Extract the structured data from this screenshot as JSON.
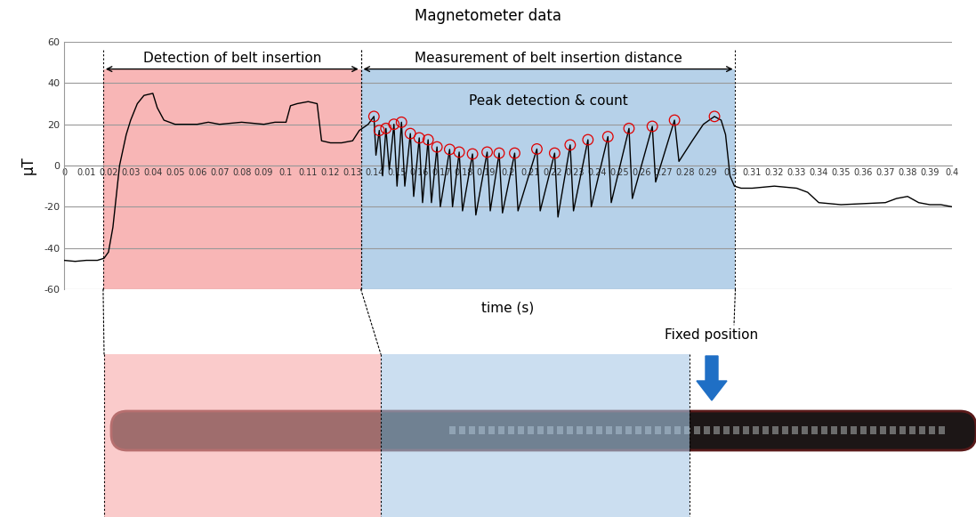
{
  "chart_data": {
    "type": "line",
    "title": "Magnetometer data",
    "x_label": "time (s)",
    "y_label": "μT",
    "color": "#000000",
    "grid": true,
    "xlim": [
      0,
      0.4
    ],
    "ylim": [
      -60,
      60
    ],
    "xticks": [
      0,
      0.01,
      0.02,
      0.03,
      0.04,
      0.05,
      0.06,
      0.07,
      0.08,
      0.09,
      0.1,
      0.11,
      0.12,
      0.13,
      0.14,
      0.15,
      0.16,
      0.17,
      0.18,
      0.19,
      0.2,
      0.21,
      0.22,
      0.23,
      0.24,
      0.25,
      0.26,
      0.27,
      0.28,
      0.29,
      0.3,
      0.31,
      0.32,
      0.33,
      0.34,
      0.35,
      0.36,
      0.37,
      0.38,
      0.39,
      0.4
    ],
    "yticks": [
      -60,
      -40,
      -20,
      0,
      20,
      40,
      60
    ],
    "x": [
      0,
      0.005,
      0.01,
      0.015,
      0.018,
      0.02,
      0.022,
      0.025,
      0.028,
      0.03,
      0.033,
      0.036,
      0.04,
      0.042,
      0.045,
      0.05,
      0.06,
      0.065,
      0.07,
      0.08,
      0.09,
      0.095,
      0.1,
      0.102,
      0.105,
      0.11,
      0.114,
      0.116,
      0.12,
      0.125,
      0.13,
      0.133,
      0.137,
      0.1396,
      0.1405,
      0.142,
      0.1435,
      0.145,
      0.1465,
      0.1486,
      0.15,
      0.152,
      0.1535,
      0.156,
      0.1575,
      0.16,
      0.1615,
      0.164,
      0.1655,
      0.168,
      0.1695,
      0.1737,
      0.175,
      0.178,
      0.1795,
      0.184,
      0.1855,
      0.1906,
      0.192,
      0.196,
      0.1975,
      0.203,
      0.2045,
      0.213,
      0.2145,
      0.221,
      0.2225,
      0.228,
      0.2295,
      0.236,
      0.2375,
      0.245,
      0.2465,
      0.2545,
      0.256,
      0.265,
      0.2665,
      0.275,
      0.277,
      0.283,
      0.288,
      0.293,
      0.296,
      0.298,
      0.3,
      0.302,
      0.305,
      0.31,
      0.32,
      0.33,
      0.335,
      0.34,
      0.35,
      0.36,
      0.37,
      0.375,
      0.38,
      0.385,
      0.39,
      0.395,
      0.4
    ],
    "values": [
      -46,
      -46.5,
      -46,
      -46,
      -45,
      -42,
      -30,
      0,
      15,
      22,
      30,
      34,
      35,
      28,
      22,
      20,
      20,
      21,
      20,
      21,
      20,
      21,
      21,
      29,
      30,
      31,
      30,
      12,
      11,
      11,
      12,
      17,
      20,
      23.8,
      5,
      17,
      -5,
      18,
      -2,
      20,
      -10,
      21,
      -10,
      15.5,
      -15,
      13.4,
      -18,
      12.5,
      -18,
      9,
      -20,
      7.8,
      -20,
      6.5,
      -22,
      5.6,
      -24,
      6.5,
      -22,
      6,
      -23,
      6,
      -22,
      8,
      -22,
      6,
      -25,
      10,
      -22,
      12.5,
      -20,
      14,
      -18,
      18,
      -16,
      19,
      -8,
      22,
      2,
      12,
      20,
      23.8,
      22,
      15,
      -5,
      -10,
      -11,
      -11,
      -10,
      -11,
      -13,
      -18,
      -19,
      -18.5,
      -18,
      -16,
      -15,
      -18,
      -19,
      -19,
      -20
    ],
    "peaks": {
      "label": "Peak detection & count",
      "color": "#e00000",
      "marker": "o",
      "x": [
        0.1396,
        0.142,
        0.145,
        0.1486,
        0.152,
        0.156,
        0.16,
        0.164,
        0.168,
        0.1737,
        0.178,
        0.184,
        0.1906,
        0.196,
        0.203,
        0.213,
        0.221,
        0.228,
        0.236,
        0.245,
        0.2545,
        0.265,
        0.275,
        0.293
      ],
      "values": [
        23.8,
        17,
        18,
        20,
        21,
        15.5,
        13.4,
        12.5,
        9,
        7.8,
        6.5,
        5.6,
        6.5,
        6,
        6,
        8,
        6,
        10,
        12.5,
        14,
        18,
        19,
        22,
        23.8
      ]
    },
    "regions": [
      {
        "label": "Detection of belt insertion",
        "start": 0.0176,
        "end": 0.1337,
        "color": "#f7a9a9"
      },
      {
        "label": "Measurement of belt insertion distance",
        "start": 0.1337,
        "end": 0.3024,
        "color": "#a9c9e6"
      }
    ],
    "annotations": [
      "Fixed position"
    ]
  }
}
